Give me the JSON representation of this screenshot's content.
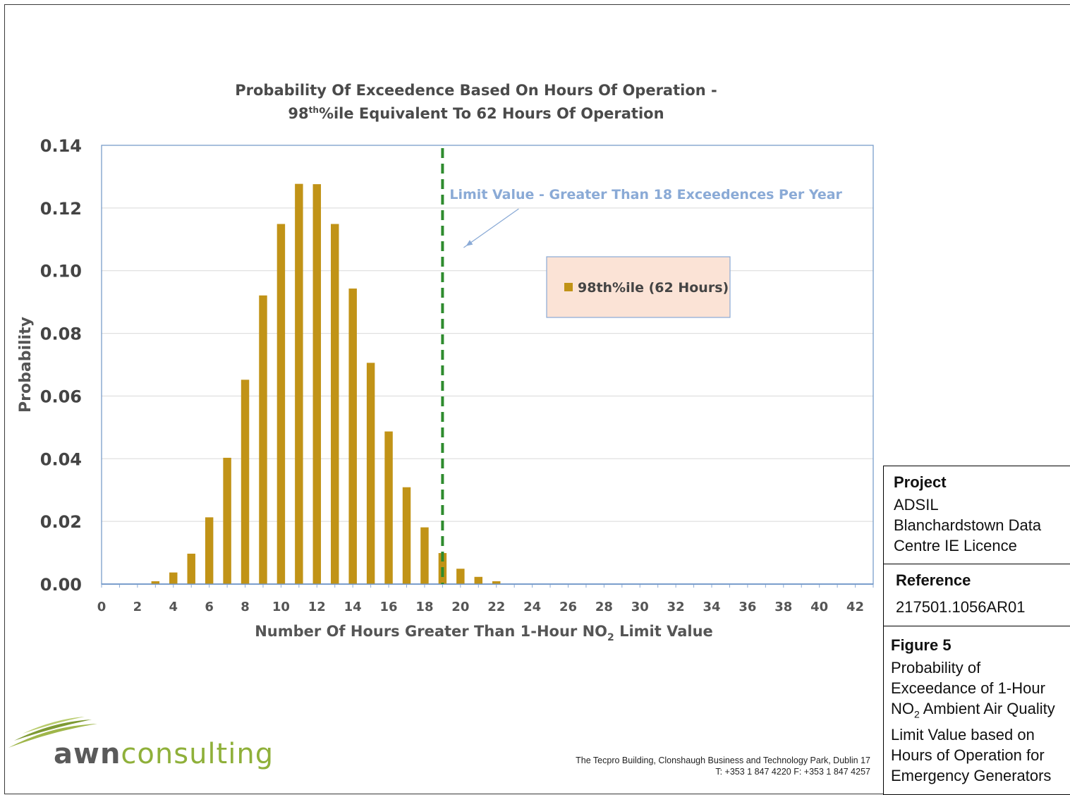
{
  "chart_data": {
    "type": "bar",
    "title_line1": "Probability Of Exceedence Based On Hours Of Operation -",
    "title_line2_prefix": "98",
    "title_line2_sup": "th",
    "title_line2_suffix": "%ile Equivalent To 62 Hours Of Operation",
    "xlabel_prefix": "Number Of Hours Greater Than 1-Hour NO",
    "xlabel_sub": "2",
    "xlabel_suffix": " Limit Value",
    "ylabel": "Probability",
    "xlim": [
      0,
      43
    ],
    "ylim": [
      0,
      0.14
    ],
    "y_ticks": [
      "0.00",
      "0.02",
      "0.04",
      "0.06",
      "0.08",
      "0.10",
      "0.12",
      "0.14"
    ],
    "x_tick_labels": [
      "0",
      "2",
      "4",
      "6",
      "8",
      "10",
      "12",
      "14",
      "16",
      "18",
      "20",
      "22",
      "24",
      "26",
      "28",
      "30",
      "32",
      "34",
      "36",
      "38",
      "40",
      "42"
    ],
    "series": [
      {
        "name": "98th%ile (62 Hours)",
        "color": "#c19317",
        "x": [
          3,
          4,
          5,
          6,
          7,
          8,
          9,
          10,
          11,
          12,
          13,
          14,
          15,
          16,
          17,
          18,
          19,
          20,
          21,
          22
        ],
        "values": [
          0.0009,
          0.0037,
          0.0097,
          0.0213,
          0.0403,
          0.0652,
          0.0921,
          0.1149,
          0.1277,
          0.1276,
          0.1149,
          0.0943,
          0.0706,
          0.0487,
          0.0309,
          0.0181,
          0.0099,
          0.0049,
          0.0023,
          0.0009
        ]
      }
    ],
    "limit_line": {
      "x": 19,
      "color": "#2e8b2e"
    },
    "annotation": "Limit Value - Greater Than 18 Exceedences Per Year",
    "legend_position": "center-right",
    "grid": true
  },
  "info": {
    "project_heading": "Project",
    "project_lines": [
      "ADSIL",
      "Blanchardstown Data",
      "Centre IE Licence"
    ],
    "reference_heading": "Reference",
    "reference_value": "217501.1056AR01",
    "figure_heading": "Figure 5",
    "figure_line1": "Probability of",
    "figure_line2": "Exceedance of 1-Hour",
    "figure_line3_prefix": "NO",
    "figure_line3_sub": "2",
    "figure_line3_suffix": " Ambient Air Quality",
    "figure_line4": "Limit Value based on",
    "figure_line5": "Hours of Operation for",
    "figure_line6": "Emergency Generators"
  },
  "footer": {
    "address": "The Tecpro Building, Clonshaugh Business and Technology Park, Dublin 17",
    "phone": "T: +353 1 847 4220    F: +353 1 847 4257"
  },
  "logo": {
    "part1": "awn",
    "part2": "consulting"
  }
}
